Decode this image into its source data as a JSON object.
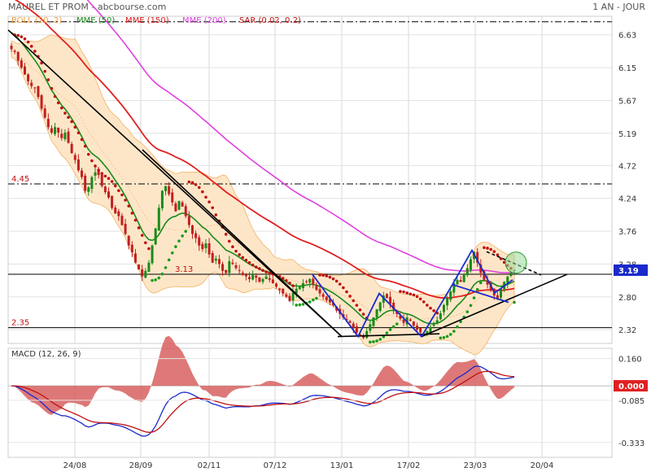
{
  "header": {
    "title": "MAUREL ET PROM - abcbourse.com",
    "period": "1 AN - JOUR"
  },
  "legend_main": [
    {
      "label": "BOLL (20, 2)",
      "color": "#f0a040"
    },
    {
      "label": "MME (50)",
      "color": "#1a8a1a"
    },
    {
      "label": "MME (150)",
      "color": "#e02020"
    },
    {
      "label": "MME (200)",
      "color": "#e040e0"
    },
    {
      "label": "SAR (0.02, 0.2)",
      "color": "#c01010"
    }
  ],
  "legend_macd": {
    "label": "MACD (12, 26, 9)"
  },
  "colors": {
    "price_up": "#1a8a1a",
    "price_down": "#c02020",
    "boll_fill": "#fde6c8",
    "boll_line": "#f4b060",
    "ema50": "#1a8a1a",
    "ema150": "#e02020",
    "ema200": "#e040e0",
    "sar_up": "#1a9a1a",
    "sar_down": "#c01010",
    "trend_black": "#000000",
    "pattern_blue": "#1a2acc",
    "price_badge": "#1a2acc",
    "macd_badge": "#e02020",
    "macd_line": "#1a2acc",
    "macd_signal": "#c01010",
    "macd_hist": "#d86060"
  },
  "chart_data": [
    {
      "type": "candlestick",
      "x_ticks": [
        "24/08",
        "28/09",
        "02/11",
        "07/12",
        "13/01",
        "17/02",
        "23/03",
        "20/04"
      ],
      "y_ticks": [
        "6.63",
        "6.15",
        "5.67",
        "5.19",
        "4.72",
        "4.24",
        "3.76",
        "3.28",
        "2.80",
        "2.32"
      ],
      "y_range": [
        2.12,
        6.9
      ],
      "ohlc_close": [
        6.42,
        6.38,
        6.25,
        6.15,
        6.05,
        5.95,
        5.88,
        5.85,
        5.72,
        5.55,
        5.42,
        5.28,
        5.2,
        5.28,
        5.2,
        5.12,
        5.2,
        5.05,
        4.9,
        4.8,
        4.65,
        4.55,
        4.35,
        4.4,
        4.55,
        4.62,
        4.58,
        4.42,
        4.33,
        4.25,
        4.1,
        4.02,
        3.98,
        3.85,
        3.72,
        3.55,
        3.45,
        3.3,
        3.2,
        3.1,
        3.18,
        3.3,
        3.55,
        3.8,
        4.1,
        4.35,
        4.42,
        4.3,
        4.18,
        4.05,
        4.2,
        4.12,
        3.98,
        3.85,
        3.72,
        3.66,
        3.55,
        3.5,
        3.58,
        3.42,
        3.3,
        3.36,
        3.28,
        3.18,
        3.15,
        3.32,
        3.28,
        3.22,
        3.18,
        3.12,
        3.1,
        3.06,
        3.12,
        3.08,
        3.02,
        3.06,
        3.1,
        3.05,
        3.0,
        2.95,
        2.9,
        2.85,
        2.8,
        2.74,
        2.86,
        2.92,
        2.95,
        3.0,
        3.02,
        3.06,
        2.98,
        2.9,
        2.85,
        2.8,
        2.75,
        2.72,
        2.68,
        2.6,
        2.55,
        2.5,
        2.46,
        2.42,
        2.35,
        2.28,
        2.24,
        2.2,
        2.3,
        2.4,
        2.5,
        2.62,
        2.72,
        2.82,
        2.78,
        2.7,
        2.62,
        2.55,
        2.48,
        2.42,
        2.5,
        2.45,
        2.38,
        2.32,
        2.28,
        2.26,
        2.3,
        2.36,
        2.4,
        2.46,
        2.56,
        2.68,
        2.78,
        2.88,
        3.0,
        3.05,
        3.02,
        3.12,
        3.22,
        3.35,
        3.46,
        3.3,
        3.15,
        3.05,
        2.98,
        2.9,
        2.82,
        2.78,
        2.92,
        3.02,
        3.1,
        3.15,
        3.19
      ],
      "series": [
        {
          "name": "BOLL (20, 2)",
          "kind": "band"
        },
        {
          "name": "MME (50)",
          "kind": "line"
        },
        {
          "name": "MME (150)",
          "kind": "line"
        },
        {
          "name": "MME (200)",
          "kind": "line"
        },
        {
          "name": "SAR (0.02, 0.2)",
          "kind": "dots"
        }
      ],
      "levels": [
        {
          "value": 6.82,
          "label": "",
          "style": "dashdot"
        },
        {
          "value": 4.45,
          "label": "4.45",
          "style": "dashdot"
        },
        {
          "value": 3.13,
          "label": "3.13",
          "style": "solid"
        },
        {
          "value": 2.35,
          "label": "2.35",
          "style": "solid"
        }
      ],
      "last_price": "3.19"
    },
    {
      "type": "line",
      "title": "MACD (12, 26, 9)",
      "y_ticks": [
        "0.160",
        "-0.085",
        "-0.333"
      ],
      "y_range": [
        -0.42,
        0.22
      ],
      "last_value": "0.000",
      "series": [
        {
          "name": "MACD"
        },
        {
          "name": "Signal"
        },
        {
          "name": "Histogram"
        }
      ]
    }
  ]
}
